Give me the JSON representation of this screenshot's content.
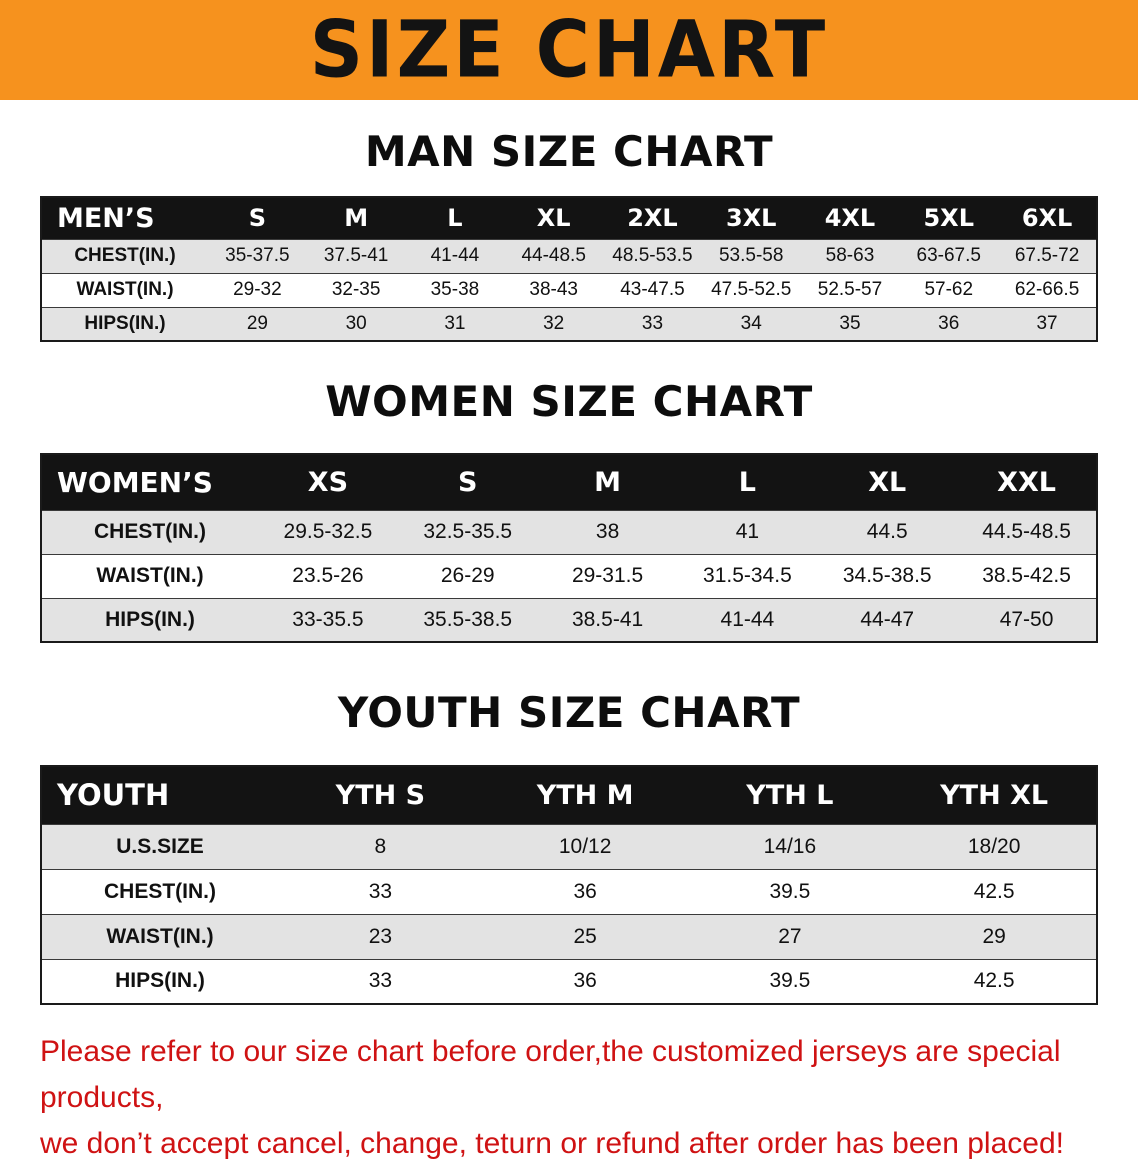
{
  "banner": {
    "title": "SIZE CHART"
  },
  "colors": {
    "banner_bg": "#F6921E",
    "table_header_bg": "#131313",
    "row_stripe": "#E3E3E3",
    "disclaimer_red": "#CF1213"
  },
  "sections": [
    {
      "id": "men",
      "heading": "MAN SIZE CHART",
      "table": {
        "header": [
          "MEN’S",
          "S",
          "M",
          "L",
          "XL",
          "2XL",
          "3XL",
          "4XL",
          "5XL",
          "6XL"
        ],
        "rows": [
          [
            "CHEST(IN.)",
            "35-37.5",
            "37.5-41",
            "41-44",
            "44-48.5",
            "48.5-53.5",
            "53.5-58",
            "58-63",
            "63-67.5",
            "67.5-72"
          ],
          [
            "WAIST(IN.)",
            "29-32",
            "32-35",
            "35-38",
            "38-43",
            "43-47.5",
            "47.5-52.5",
            "52.5-57",
            "57-62",
            "62-66.5"
          ],
          [
            "HIPS(IN.)",
            "29",
            "30",
            "31",
            "32",
            "33",
            "34",
            "35",
            "36",
            "37"
          ]
        ]
      }
    },
    {
      "id": "women",
      "heading": "WOMEN SIZE CHART",
      "table": {
        "header": [
          "WOMEN’S",
          "XS",
          "S",
          "M",
          "L",
          "XL",
          "XXL"
        ],
        "rows": [
          [
            "CHEST(IN.)",
            "29.5-32.5",
            "32.5-35.5",
            "38",
            "41",
            "44.5",
            "44.5-48.5"
          ],
          [
            "WAIST(IN.)",
            "23.5-26",
            "26-29",
            "29-31.5",
            "31.5-34.5",
            "34.5-38.5",
            "38.5-42.5"
          ],
          [
            "HIPS(IN.)",
            "33-35.5",
            "35.5-38.5",
            "38.5-41",
            "41-44",
            "44-47",
            "47-50"
          ]
        ]
      }
    },
    {
      "id": "youth",
      "heading": "YOUTH SIZE CHART",
      "table": {
        "header": [
          "YOUTH",
          "YTH S",
          "YTH M",
          "YTH L",
          "YTH XL"
        ],
        "rows": [
          [
            "U.S.SIZE",
            "8",
            "10/12",
            "14/16",
            "18/20"
          ],
          [
            "CHEST(IN.)",
            "33",
            "36",
            "39.5",
            "42.5"
          ],
          [
            "WAIST(IN.)",
            "23",
            "25",
            "27",
            "29"
          ],
          [
            "HIPS(IN.)",
            "33",
            "36",
            "39.5",
            "42.5"
          ]
        ]
      }
    }
  ],
  "disclaimer": {
    "line1": "Please refer to our size chart before order,the customized jerseys are special products,",
    "line2": "we don’t accept cancel, change, teturn or refund after order has been placed!"
  }
}
